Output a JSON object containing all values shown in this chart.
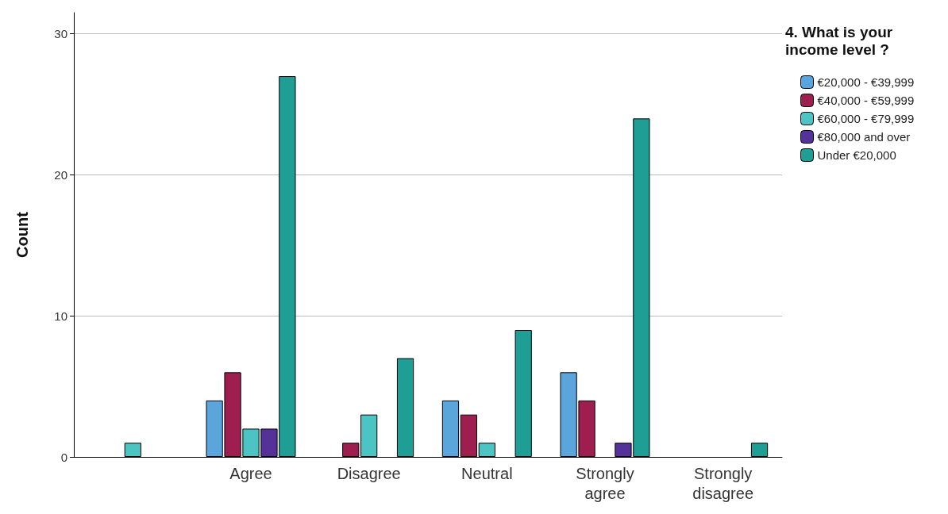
{
  "chart_data": {
    "type": "bar",
    "ylabel": "Count",
    "legend_title": "4. What is your income level ?",
    "categories": [
      null,
      "Agree",
      "Disagree",
      "Neutral",
      "Strongly agree",
      "Strongly disagree"
    ],
    "series": [
      {
        "name": "€20,000 - €39,999",
        "color": "#5aa5dc",
        "values": [
          null,
          4,
          null,
          4,
          6,
          null
        ]
      },
      {
        "name": "€40,000 - €59,999",
        "color": "#9e1f4f",
        "values": [
          null,
          6,
          1,
          3,
          4,
          null
        ]
      },
      {
        "name": "€60,000 - €79,999",
        "color": "#4dc4c4",
        "values": [
          1,
          2,
          3,
          1,
          null,
          null
        ]
      },
      {
        "name": "€80,000 and over",
        "color": "#55329a",
        "values": [
          null,
          2,
          null,
          null,
          1,
          null
        ]
      },
      {
        "name": "Under €20,000",
        "color": "#1f9e96",
        "values": [
          null,
          27,
          7,
          9,
          24,
          1
        ]
      }
    ],
    "ylim": [
      0,
      31.5
    ],
    "yticks": [
      0,
      10,
      20,
      30
    ],
    "grid": "y",
    "legend": "top right"
  }
}
